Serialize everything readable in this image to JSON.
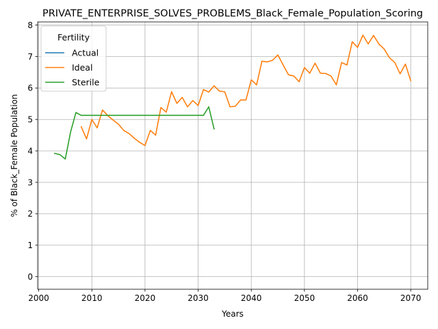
{
  "chart_data": {
    "type": "line",
    "title": "PRIVATE_ENTERPRISE_SOLVES_PROBLEMS_Black_Female_Population_Scoring",
    "xlabel": "Years",
    "ylabel": "% of Black_Female Population",
    "xlim": [
      1999.8,
      2073.2
    ],
    "ylim": [
      -0.4,
      8.1
    ],
    "xticks": [
      2000,
      2010,
      2020,
      2030,
      2040,
      2050,
      2060,
      2070
    ],
    "yticks": [
      0,
      1,
      2,
      3,
      4,
      5,
      6,
      7,
      8
    ],
    "grid": true,
    "legend": {
      "title": "Fertility",
      "placement": "top-left"
    },
    "series": [
      {
        "name": "Actual",
        "color": "#1f77b4",
        "x": [],
        "y": []
      },
      {
        "name": "Ideal",
        "color": "#ff7f0e",
        "x": [
          2008,
          2009,
          2010,
          2011,
          2012,
          2013,
          2014,
          2015,
          2016,
          2017,
          2018,
          2019,
          2020,
          2021,
          2022,
          2023,
          2024,
          2025,
          2026,
          2027,
          2028,
          2029,
          2030,
          2031,
          2032,
          2033,
          2034,
          2035,
          2036,
          2037,
          2038,
          2039,
          2040,
          2041,
          2042,
          2043,
          2044,
          2045,
          2046,
          2047,
          2048,
          2049,
          2050,
          2051,
          2052,
          2053,
          2054,
          2055,
          2056,
          2057,
          2058,
          2059,
          2060,
          2061,
          2062,
          2063,
          2064,
          2065,
          2066,
          2067,
          2068,
          2069,
          2070
        ],
        "y": [
          4.77,
          4.38,
          5.0,
          4.73,
          5.3,
          5.12,
          4.98,
          4.85,
          4.65,
          4.55,
          4.4,
          4.27,
          4.17,
          4.65,
          4.5,
          5.38,
          5.23,
          5.88,
          5.51,
          5.7,
          5.4,
          5.6,
          5.44,
          5.95,
          5.87,
          6.07,
          5.9,
          5.88,
          5.4,
          5.42,
          5.62,
          5.62,
          6.26,
          6.1,
          6.85,
          6.83,
          6.88,
          7.05,
          6.73,
          6.42,
          6.38,
          6.2,
          6.65,
          6.47,
          6.79,
          6.47,
          6.46,
          6.38,
          6.1,
          6.81,
          6.73,
          7.47,
          7.29,
          7.68,
          7.4,
          7.67,
          7.4,
          7.24,
          6.96,
          6.81,
          6.45,
          6.76,
          6.23
        ]
      },
      {
        "name": "Sterile",
        "color": "#2ca02c",
        "x": [
          2003,
          2004,
          2005,
          2006,
          2007,
          2008,
          2009,
          2010,
          2011,
          2012,
          2013,
          2014,
          2015,
          2016,
          2017,
          2018,
          2019,
          2020,
          2021,
          2022,
          2023,
          2024,
          2025,
          2026,
          2027,
          2028,
          2029,
          2030,
          2031,
          2032,
          2033
        ],
        "y": [
          3.92,
          3.88,
          3.74,
          4.6,
          5.22,
          5.13,
          5.13,
          5.13,
          5.13,
          5.13,
          5.13,
          5.13,
          5.13,
          5.13,
          5.13,
          5.13,
          5.13,
          5.13,
          5.13,
          5.13,
          5.13,
          5.13,
          5.13,
          5.13,
          5.13,
          5.13,
          5.13,
          5.13,
          5.13,
          5.4,
          4.7
        ]
      }
    ]
  }
}
